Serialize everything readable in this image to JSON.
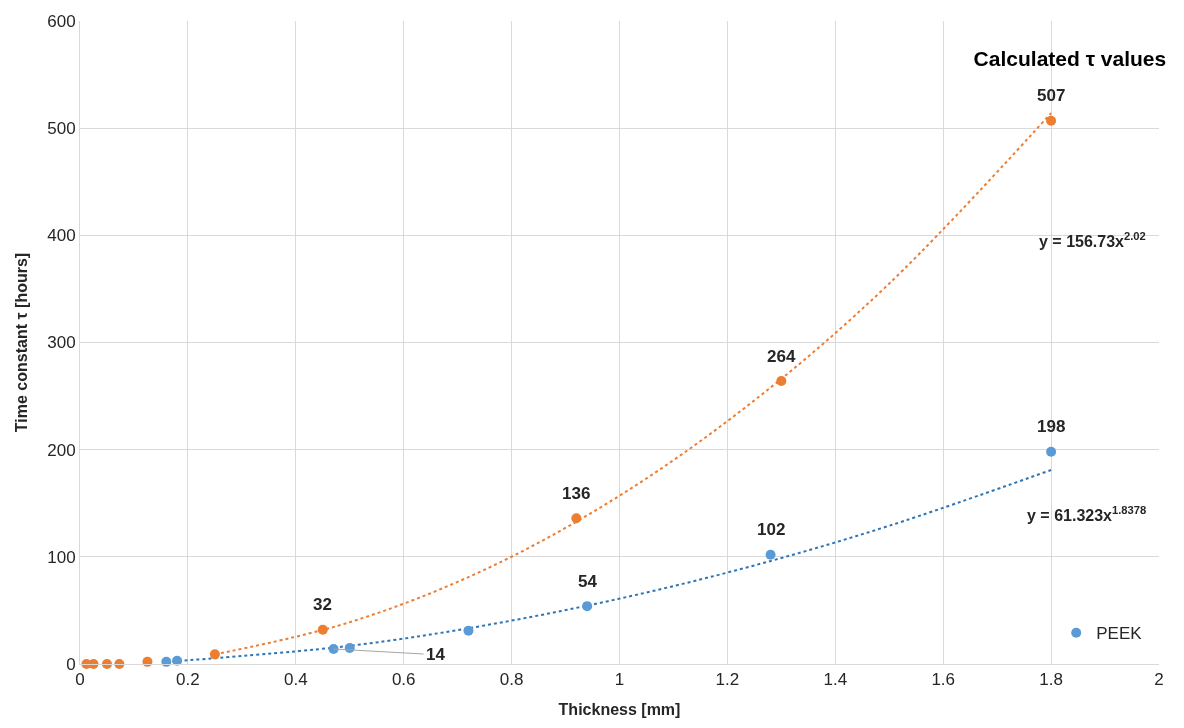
{
  "chart_data": {
    "type": "scatter",
    "title": "Calculated τ values",
    "xlabel": "Thickness [mm]",
    "ylabel": "Time constant τ [hours]",
    "xlim": [
      0,
      2
    ],
    "xticks": [
      0,
      {
        "value": 0.2,
        "label": "0.2"
      },
      {
        "value": 0.4,
        "label": "0.4"
      },
      {
        "value": 0.6,
        "label": "0.6"
      },
      {
        "value": 0.8,
        "label": "0.8"
      },
      1,
      {
        "value": 1.2,
        "label": "1.2"
      },
      {
        "value": 1.4,
        "label": "1.4"
      },
      {
        "value": 1.6,
        "label": "1.6"
      },
      {
        "value": 1.8,
        "label": "1.8"
      },
      2
    ],
    "ylim": [
      0,
      600
    ],
    "yticks": [
      0,
      100,
      200,
      300,
      400,
      500,
      600
    ],
    "grid": true,
    "legend": "bottom right",
    "marker": "circle",
    "series": [
      {
        "type": "line",
        "color": "#ed7d31",
        "line_style": "dotted",
        "marker": "none",
        "x": [
          0.25,
          0.5,
          0.75,
          1.0,
          1.25,
          1.5,
          1.8
        ],
        "values": [
          9,
          39,
          88,
          157,
          246,
          355,
          514
        ]
      },
      {
        "type": "line",
        "color": "#2e75b6",
        "line_style": "dotted",
        "marker": "none",
        "x": [
          0.16,
          0.5,
          0.75,
          1.0,
          1.25,
          1.5,
          1.8
        ],
        "values": [
          2,
          17,
          36,
          61,
          92,
          129,
          181
        ]
      },
      {
        "color": "#ed7d31",
        "x": [
          0.012,
          0.025,
          0.05,
          0.073,
          0.125,
          0.25,
          0.45,
          0.92,
          1.3,
          1.8
        ],
        "values": [
          0,
          0,
          0,
          0,
          2,
          9,
          32,
          136,
          264,
          507
        ],
        "value_labels": [
          null,
          null,
          null,
          null,
          null,
          null,
          "32",
          "136",
          "264",
          "507"
        ]
      },
      {
        "name": "PEEK",
        "color": "#5b9bd5",
        "x": [
          0.16,
          0.18,
          0.47,
          0.5,
          0.72,
          0.94,
          1.28,
          1.8
        ],
        "values": [
          2,
          3,
          14,
          15,
          31,
          54,
          102,
          198
        ],
        "value_labels": [
          null,
          null,
          "14",
          null,
          null,
          "54",
          "102",
          "198"
        ]
      }
    ],
    "annotations": [
      "y = 156.73x$^{2.02}$",
      "y = 61.323x$^{1.8378}$"
    ]
  }
}
